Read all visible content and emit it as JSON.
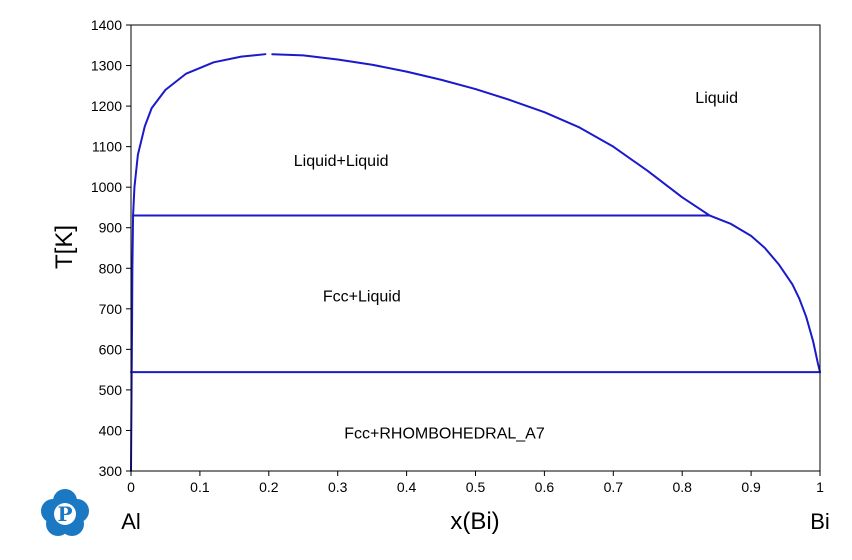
{
  "chart_data": {
    "type": "line",
    "title": "",
    "xlabel": "x(Bi)",
    "ylabel": "T[K]",
    "xlim": [
      0,
      1
    ],
    "ylim": [
      300,
      1400
    ],
    "x_ticks": [
      0,
      0.1,
      0.2,
      0.3,
      0.4,
      0.5,
      0.6,
      0.7,
      0.8,
      0.9,
      1
    ],
    "x_tick_labels": [
      "0",
      "0.1",
      "0.2",
      "0.3",
      "0.4",
      "0.5",
      "0.6",
      "0.7",
      "0.8",
      "0.9",
      "1"
    ],
    "y_ticks": [
      300,
      400,
      500,
      600,
      700,
      800,
      900,
      1000,
      1100,
      1200,
      1300,
      1400
    ],
    "y_tick_labels": [
      "300",
      "400",
      "500",
      "600",
      "700",
      "800",
      "900",
      "1000",
      "1100",
      "1200",
      "1300",
      "1400"
    ],
    "end_labels": {
      "left": "Al",
      "right": "Bi"
    },
    "grid": false,
    "line_color": "#1a1acc",
    "series": [
      {
        "points": [
          [
            0.003,
            930
          ],
          [
            0.005,
            1000
          ],
          [
            0.01,
            1080
          ],
          [
            0.02,
            1150
          ],
          [
            0.03,
            1195
          ],
          [
            0.05,
            1240
          ],
          [
            0.08,
            1280
          ],
          [
            0.12,
            1308
          ],
          [
            0.16,
            1322
          ],
          [
            0.195,
            1328
          ]
        ]
      },
      {
        "points": [
          [
            0.205,
            1328
          ],
          [
            0.25,
            1325
          ],
          [
            0.3,
            1315
          ],
          [
            0.35,
            1302
          ],
          [
            0.4,
            1285
          ],
          [
            0.45,
            1265
          ],
          [
            0.5,
            1242
          ],
          [
            0.55,
            1215
          ],
          [
            0.6,
            1185
          ],
          [
            0.65,
            1148
          ],
          [
            0.7,
            1100
          ],
          [
            0.75,
            1040
          ],
          [
            0.8,
            975
          ],
          [
            0.84,
            930
          ]
        ]
      },
      {
        "points": [
          [
            0.84,
            930
          ],
          [
            0.87,
            910
          ],
          [
            0.9,
            880
          ],
          [
            0.92,
            850
          ],
          [
            0.94,
            810
          ],
          [
            0.96,
            760
          ],
          [
            0.97,
            725
          ],
          [
            0.98,
            680
          ],
          [
            0.99,
            620
          ],
          [
            0.997,
            565
          ],
          [
            1.0,
            544
          ]
        ]
      },
      {
        "points": [
          [
            0.003,
            930
          ],
          [
            0.84,
            930
          ]
        ]
      },
      {
        "points": [
          [
            0.0,
            544
          ],
          [
            1.0,
            544
          ]
        ]
      },
      {
        "points": [
          [
            0.003,
            930
          ],
          [
            0.002,
            800
          ],
          [
            0.0015,
            650
          ],
          [
            0.001,
            544
          ],
          [
            0.0,
            300
          ]
        ]
      }
    ],
    "annotations": [
      {
        "text": "Liquid",
        "x": 0.85,
        "y": 1220
      },
      {
        "text": "Liquid+Liquid",
        "x": 0.305,
        "y": 1065
      },
      {
        "text": "Fcc+Liquid",
        "x": 0.335,
        "y": 730
      },
      {
        "text": "Fcc+RHOMBOHEDRAL_A7",
        "x": 0.455,
        "y": 393
      }
    ]
  },
  "logo": {
    "name": "pandat-logo-icon",
    "glyph": "P",
    "color": "#1b78c2"
  }
}
